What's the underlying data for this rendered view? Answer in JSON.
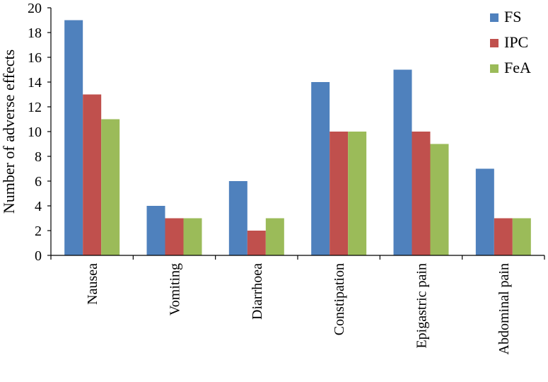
{
  "chart_data": {
    "type": "bar",
    "title": "",
    "xlabel": "",
    "ylabel": "Number of adverse effects",
    "ylim": [
      0,
      20
    ],
    "yticks": [
      0,
      2,
      4,
      6,
      8,
      10,
      12,
      14,
      16,
      18,
      20
    ],
    "grid": false,
    "legend_position": "top-right",
    "categories": [
      "Nausea",
      "Vomiting",
      "Diarrhoea",
      "Constipation",
      "Epigastric pain",
      "Abdominal pain"
    ],
    "series": [
      {
        "name": "FS",
        "color": "#4F81BD",
        "values": [
          19,
          4,
          6,
          14,
          15,
          7
        ]
      },
      {
        "name": "IPC",
        "color": "#C0504D",
        "values": [
          13,
          3,
          2,
          10,
          10,
          3
        ]
      },
      {
        "name": "FeA",
        "color": "#9BBB59",
        "values": [
          11,
          3,
          3,
          10,
          9,
          3
        ]
      }
    ]
  }
}
